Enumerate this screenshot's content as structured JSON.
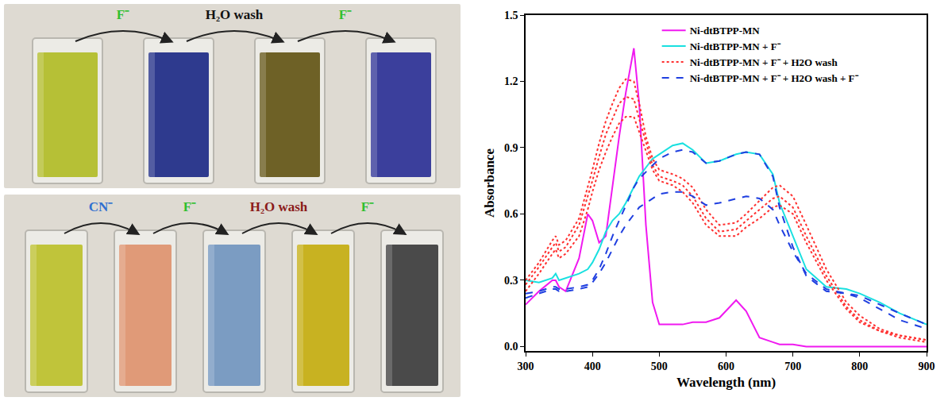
{
  "photos": [
    {
      "colors": [
        "#b6c036",
        "#2e3a8e",
        "#6e6126",
        "#3b3f9c"
      ],
      "labels": [
        {
          "text": "F⁻",
          "color": "#2fbf2f"
        },
        {
          "text": "H₂O wash",
          "color": "#111111"
        },
        {
          "text": "F⁻",
          "color": "#2fbf2f"
        }
      ]
    },
    {
      "colors": [
        "#c0c43a",
        "#e09a78",
        "#7b9cc2",
        "#c8b221",
        "#4a4a4a"
      ],
      "labels": [
        {
          "text": "CN⁻",
          "color": "#2f6fd0"
        },
        {
          "text": "F⁻",
          "color": "#2fbf2f"
        },
        {
          "text": "H₂O wash",
          "color": "#8b1a1a"
        },
        {
          "text": "F⁻",
          "color": "#2fbf2f"
        }
      ]
    }
  ],
  "chart_data": {
    "type": "line",
    "x_label": "Wavelength (nm)",
    "y_label": "Absorbance",
    "xlim": [
      300,
      900
    ],
    "xticks": [
      300,
      400,
      500,
      600,
      700,
      800,
      900
    ],
    "ylim": [
      -0.02,
      1.5
    ],
    "yticks": [
      {
        "value": 0,
        "label": "0.0"
      },
      {
        "value": 0.3,
        "label": "0.3"
      },
      {
        "value": 0.6,
        "label": "0.6"
      },
      {
        "value": 0.9,
        "label": "0.9"
      },
      {
        "value": 1.2,
        "label": "1.2"
      },
      {
        "value": 1.5,
        "label": "1.5"
      }
    ],
    "grid": false,
    "legend": "upper center",
    "x": [
      300,
      320,
      340,
      345,
      350,
      360,
      380,
      393,
      400,
      410,
      420,
      430,
      440,
      450,
      462,
      470,
      480,
      490,
      500,
      520,
      535,
      550,
      570,
      590,
      615,
      630,
      650,
      670,
      680,
      700,
      720,
      750,
      780,
      800,
      830,
      860,
      900
    ],
    "series": [
      {
        "name": "Ni-dtBTPP-MN",
        "color": "#f019f0",
        "line_style": "solid",
        "values": [
          0.19,
          0.25,
          0.3,
          0.3,
          0.27,
          0.25,
          0.4,
          0.6,
          0.57,
          0.47,
          0.5,
          0.72,
          0.95,
          1.15,
          1.35,
          1.1,
          0.55,
          0.2,
          0.1,
          0.1,
          0.1,
          0.11,
          0.11,
          0.13,
          0.21,
          0.16,
          0.04,
          0.02,
          0.01,
          0.01,
          0.0,
          0.0,
          0.0,
          0.0,
          0.0,
          0.0,
          0.0
        ]
      },
      {
        "name": "Ni-dtBTPP-MN + F⁻",
        "color": "#19e0e0",
        "line_style": "solid",
        "values": [
          0.3,
          0.29,
          0.31,
          0.33,
          0.3,
          0.31,
          0.33,
          0.35,
          0.38,
          0.44,
          0.52,
          0.57,
          0.6,
          0.65,
          0.72,
          0.77,
          0.81,
          0.85,
          0.87,
          0.91,
          0.92,
          0.89,
          0.83,
          0.84,
          0.87,
          0.88,
          0.87,
          0.78,
          0.65,
          0.5,
          0.35,
          0.27,
          0.26,
          0.24,
          0.2,
          0.15,
          0.1
        ]
      },
      {
        "name": "Ni-dtBTPP-MN + F⁻ + H2O wash",
        "color": "#ff3030",
        "line_style": "dot",
        "values": [
          [
            0.3,
            0.38,
            0.48,
            0.5,
            0.46,
            0.48,
            0.58,
            0.72,
            0.8,
            0.92,
            1.02,
            1.1,
            1.17,
            1.21,
            1.2,
            1.1,
            0.95,
            0.85,
            0.8,
            0.78,
            0.76,
            0.72,
            0.62,
            0.55,
            0.56,
            0.6,
            0.66,
            0.72,
            0.73,
            0.68,
            0.55,
            0.35,
            0.2,
            0.14,
            0.08,
            0.05,
            0.03
          ],
          [
            0.28,
            0.36,
            0.45,
            0.47,
            0.43,
            0.45,
            0.55,
            0.68,
            0.75,
            0.86,
            0.96,
            1.03,
            1.1,
            1.13,
            1.12,
            1.03,
            0.92,
            0.82,
            0.77,
            0.75,
            0.73,
            0.68,
            0.58,
            0.52,
            0.53,
            0.57,
            0.62,
            0.67,
            0.68,
            0.63,
            0.5,
            0.32,
            0.18,
            0.12,
            0.07,
            0.05,
            0.03
          ],
          [
            0.25,
            0.33,
            0.42,
            0.44,
            0.4,
            0.42,
            0.5,
            0.62,
            0.7,
            0.8,
            0.88,
            0.95,
            1.01,
            1.04,
            1.04,
            0.97,
            0.88,
            0.8,
            0.75,
            0.73,
            0.7,
            0.65,
            0.55,
            0.5,
            0.5,
            0.54,
            0.58,
            0.63,
            0.64,
            0.6,
            0.47,
            0.3,
            0.17,
            0.11,
            0.07,
            0.04,
            0.02
          ]
        ]
      },
      {
        "name": "Ni-dtBTPP-MN + F⁻ + H2O wash + F⁻",
        "color": "#1f3fe0",
        "line_style": "dash",
        "values": [
          [
            0.24,
            0.25,
            0.27,
            0.27,
            0.26,
            0.26,
            0.27,
            0.28,
            0.3,
            0.35,
            0.42,
            0.5,
            0.57,
            0.64,
            0.72,
            0.76,
            0.79,
            0.82,
            0.85,
            0.88,
            0.89,
            0.88,
            0.83,
            0.84,
            0.87,
            0.88,
            0.87,
            0.77,
            0.63,
            0.45,
            0.32,
            0.25,
            0.24,
            0.23,
            0.19,
            0.15,
            0.1
          ],
          [
            0.22,
            0.24,
            0.26,
            0.26,
            0.25,
            0.25,
            0.26,
            0.27,
            0.29,
            0.33,
            0.38,
            0.44,
            0.5,
            0.55,
            0.6,
            0.63,
            0.65,
            0.67,
            0.69,
            0.7,
            0.7,
            0.68,
            0.64,
            0.65,
            0.67,
            0.68,
            0.67,
            0.62,
            0.55,
            0.43,
            0.33,
            0.26,
            0.24,
            0.22,
            0.17,
            0.12,
            0.08
          ]
        ]
      }
    ]
  }
}
